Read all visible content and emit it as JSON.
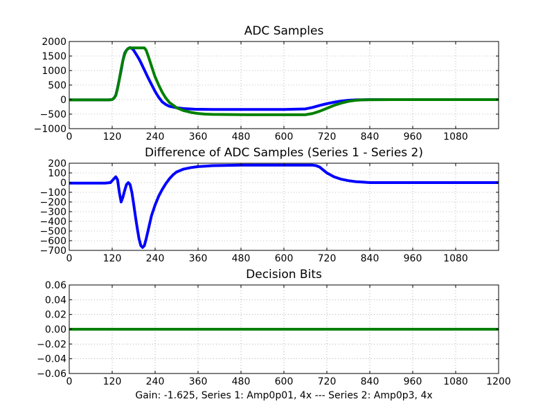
{
  "figure": {
    "caption": "Gain: -1.625, Series 1: Amp0p01, 4x --- Series 2: Amp0p3, 4x",
    "background": "#ffffff"
  },
  "colors": {
    "series1": "#0000ff",
    "series2": "#008000",
    "grid": "#808080",
    "axes": "#000000"
  },
  "chart_data": [
    {
      "type": "scatter",
      "title": "ADC Samples",
      "xlabel": "",
      "ylabel": "",
      "xlim": [
        0,
        1200
      ],
      "ylim": [
        -1000,
        2000
      ],
      "xticks": [
        0,
        120,
        240,
        360,
        480,
        600,
        720,
        840,
        960,
        1080
      ],
      "yticks": [
        -1000,
        -500,
        0,
        500,
        1000,
        1500,
        2000
      ],
      "ytick_labels": [
        "−1000",
        "−500",
        "0",
        "500",
        "1000",
        "1500",
        "2000"
      ],
      "grid": true,
      "legend": "none",
      "series": [
        {
          "color": "#0000ff",
          "x": [
            0,
            110,
            120,
            125,
            130,
            135,
            140,
            145,
            150,
            155,
            160,
            165,
            170,
            175,
            180,
            185,
            190,
            195,
            200,
            210,
            220,
            230,
            240,
            250,
            260,
            270,
            280,
            300,
            320,
            350,
            400,
            500,
            600,
            660,
            680,
            700,
            720,
            740,
            760,
            780,
            800,
            820,
            840,
            900,
            1000,
            1100,
            1200
          ],
          "y": [
            -10,
            -10,
            0,
            50,
            150,
            400,
            700,
            1000,
            1350,
            1600,
            1700,
            1760,
            1790,
            1760,
            1700,
            1600,
            1500,
            1400,
            1280,
            1020,
            760,
            520,
            280,
            80,
            -80,
            -170,
            -230,
            -280,
            -310,
            -330,
            -340,
            -340,
            -340,
            -320,
            -270,
            -200,
            -140,
            -90,
            -50,
            -25,
            -10,
            -5,
            0,
            0,
            0,
            0,
            0
          ]
        },
        {
          "color": "#008000",
          "x": [
            0,
            110,
            120,
            125,
            130,
            135,
            140,
            145,
            150,
            155,
            160,
            165,
            170,
            175,
            180,
            190,
            200,
            210,
            215,
            220,
            225,
            230,
            235,
            240,
            250,
            260,
            270,
            280,
            300,
            320,
            340,
            360,
            380,
            400,
            500,
            600,
            660,
            680,
            700,
            720,
            740,
            760,
            780,
            800,
            820,
            840,
            900,
            1000,
            1100,
            1200
          ],
          "y": [
            -10,
            -10,
            0,
            50,
            140,
            380,
            700,
            1050,
            1350,
            1560,
            1700,
            1760,
            1780,
            1780,
            1780,
            1780,
            1780,
            1780,
            1700,
            1520,
            1340,
            1150,
            960,
            780,
            500,
            250,
            50,
            -100,
            -280,
            -380,
            -440,
            -480,
            -500,
            -510,
            -520,
            -520,
            -520,
            -480,
            -400,
            -300,
            -200,
            -120,
            -60,
            -25,
            -10,
            -5,
            0,
            0,
            0,
            0
          ]
        }
      ]
    },
    {
      "type": "scatter",
      "title": "Difference of ADC Samples (Series 1 - Series 2)",
      "xlabel": "",
      "ylabel": "",
      "xlim": [
        0,
        1200
      ],
      "ylim": [
        -700,
        200
      ],
      "xticks": [
        0,
        120,
        240,
        360,
        480,
        600,
        720,
        840,
        960,
        1080
      ],
      "yticks": [
        -700,
        -600,
        -500,
        -400,
        -300,
        -200,
        -100,
        0,
        100,
        200
      ],
      "ytick_labels": [
        "−700",
        "−600",
        "−500",
        "−400",
        "−300",
        "−200",
        "−100",
        "0",
        "100",
        "200"
      ],
      "grid": true,
      "legend": "none",
      "series": [
        {
          "color": "#0000ff",
          "x": [
            0,
            50,
            100,
            115,
            120,
            125,
            130,
            135,
            140,
            145,
            150,
            155,
            160,
            165,
            170,
            175,
            180,
            185,
            190,
            195,
            200,
            205,
            210,
            215,
            220,
            225,
            230,
            240,
            250,
            260,
            270,
            280,
            290,
            300,
            320,
            340,
            360,
            380,
            400,
            440,
            480,
            520,
            560,
            600,
            640,
            680,
            690,
            700,
            710,
            720,
            740,
            760,
            780,
            800,
            820,
            840,
            880,
            920,
            960,
            1000,
            1040,
            1080,
            1120,
            1160,
            1200
          ],
          "y": [
            -5,
            -5,
            -5,
            0,
            20,
            40,
            60,
            30,
            -100,
            -200,
            -150,
            -80,
            -20,
            0,
            -20,
            -100,
            -220,
            -350,
            -470,
            -580,
            -650,
            -670,
            -650,
            -580,
            -500,
            -420,
            -340,
            -230,
            -140,
            -70,
            -10,
            40,
            80,
            110,
            140,
            155,
            165,
            170,
            175,
            178,
            180,
            180,
            180,
            180,
            180,
            180,
            175,
            160,
            130,
            100,
            60,
            35,
            20,
            10,
            5,
            0,
            0,
            0,
            0,
            0,
            0,
            0,
            0,
            0,
            0
          ]
        }
      ]
    },
    {
      "type": "scatter",
      "title": "Decision Bits",
      "xlabel": "",
      "ylabel": "",
      "xlim": [
        0,
        1200
      ],
      "ylim": [
        -0.06,
        0.06
      ],
      "xticks": [
        0,
        120,
        240,
        360,
        480,
        600,
        720,
        840,
        960,
        1080,
        1200
      ],
      "yticks": [
        -0.06,
        -0.04,
        -0.02,
        0.0,
        0.02,
        0.04,
        0.06
      ],
      "ytick_labels": [
        "−0.06",
        "−0.04",
        "−0.02",
        "0.00",
        "0.02",
        "0.04",
        "0.06"
      ],
      "grid": true,
      "legend": "none",
      "series": [
        {
          "color": "#008000",
          "x": [
            0,
            1200
          ],
          "y": [
            0,
            0
          ]
        }
      ]
    }
  ]
}
